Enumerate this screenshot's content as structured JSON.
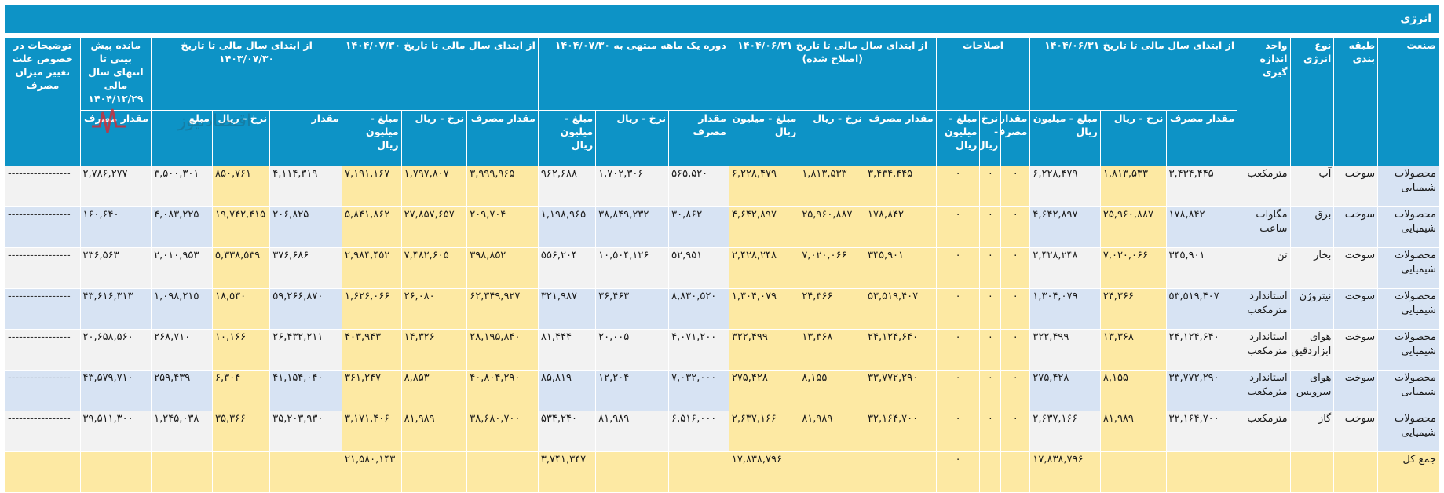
{
  "title": "انرژی",
  "header": {
    "industry": "صنعت",
    "category": "طبقه بندی",
    "energy_type": "نوع انرژی",
    "unit": "واحد اندازه گیری",
    "period1": "از ابتدای سال مالی تا تاریخ ۱۴۰۴/۰۶/۳۱",
    "corrections": "اصلاحات",
    "period2": "از ابتدای سال مالی تا تاریخ ۱۴۰۴/۰۶/۳۱ (اصلاح شده)",
    "period3": "دوره یک ماهه منتهی به ۱۴۰۴/۰۷/۳۰",
    "period4": "از ابتدای سال مالی تا تاریخ ۱۴۰۴/۰۷/۳۰",
    "period5": "از ابتدای سال مالی تا تاریخ ۱۴۰۳/۰۷/۳۰",
    "remaining": "مانده پیش بینی تا انتهای سال مالی ۱۴۰۴/۱۲/۲۹",
    "notes": "توضیحات در خصوص علت تغییر میزان مصرف",
    "sub_qty_cons": "مقدار مصرف",
    "sub_rate": "نرخ - ریال",
    "sub_amount": "مبلغ - میلیون ریال",
    "sub_corr_qty": "مقدار مصرف",
    "sub_corr_rate": "نرخ - ریال",
    "sub_corr_amount": "مبلغ - میلیون ریال",
    "sub_p3_qty": "مقدار مصرف",
    "sub_p5_qty": "مقدار",
    "sub_p5_amount": "مبلغ"
  },
  "rows": [
    {
      "industry": "محصولات شیمیایی",
      "category": "سوخت",
      "type": "آب",
      "unit": "مترمکعب",
      "p1": [
        "۳,۴۳۴,۴۴۵",
        "۱,۸۱۳,۵۳۳",
        "۶,۲۲۸,۴۷۹"
      ],
      "corr": [
        "۰",
        "۰",
        "۰"
      ],
      "p2": [
        "۳,۴۳۴,۴۴۵",
        "۱,۸۱۳,۵۳۳",
        "۶,۲۲۸,۴۷۹"
      ],
      "p3": [
        "۵۶۵,۵۲۰",
        "۱,۷۰۲,۳۰۶",
        "۹۶۲,۶۸۸"
      ],
      "p4": [
        "۳,۹۹۹,۹۶۵",
        "۱,۷۹۷,۸۰۷",
        "۷,۱۹۱,۱۶۷"
      ],
      "p5": [
        "۴,۱۱۴,۳۱۹",
        "۸۵۰,۷۶۱",
        "۳,۵۰۰,۳۰۱"
      ],
      "rem": "۲,۷۸۶,۲۷۷",
      "note": "-----------------"
    },
    {
      "industry": "محصولات شیمیایی",
      "category": "سوخت",
      "type": "برق",
      "unit": "مگاوات ساعت",
      "p1": [
        "۱۷۸,۸۴۲",
        "۲۵,۹۶۰,۸۸۷",
        "۴,۶۴۲,۸۹۷"
      ],
      "corr": [
        "۰",
        "۰",
        "۰"
      ],
      "p2": [
        "۱۷۸,۸۴۲",
        "۲۵,۹۶۰,۸۸۷",
        "۴,۶۴۲,۸۹۷"
      ],
      "p3": [
        "۳۰,۸۶۲",
        "۳۸,۸۴۹,۲۳۲",
        "۱,۱۹۸,۹۶۵"
      ],
      "p4": [
        "۲۰۹,۷۰۴",
        "۲۷,۸۵۷,۶۵۷",
        "۵,۸۴۱,۸۶۲"
      ],
      "p5": [
        "۲۰۶,۸۲۵",
        "۱۹,۷۴۲,۴۱۵",
        "۴,۰۸۳,۲۲۵"
      ],
      "rem": "۱۶۰,۶۴۰",
      "note": "-----------------"
    },
    {
      "industry": "محصولات شیمیایی",
      "category": "سوخت",
      "type": "بخار",
      "unit": "تن",
      "p1": [
        "۳۴۵,۹۰۱",
        "۷,۰۲۰,۰۶۶",
        "۲,۴۲۸,۲۴۸"
      ],
      "corr": [
        "۰",
        "۰",
        "۰"
      ],
      "p2": [
        "۳۴۵,۹۰۱",
        "۷,۰۲۰,۰۶۶",
        "۲,۴۲۸,۲۴۸"
      ],
      "p3": [
        "۵۲,۹۵۱",
        "۱۰,۵۰۴,۱۲۶",
        "۵۵۶,۲۰۴"
      ],
      "p4": [
        "۳۹۸,۸۵۲",
        "۷,۴۸۲,۶۰۵",
        "۲,۹۸۴,۴۵۲"
      ],
      "p5": [
        "۳۷۶,۶۸۶",
        "۵,۳۳۸,۵۳۹",
        "۲,۰۱۰,۹۵۳"
      ],
      "rem": "۲۳۶,۵۶۳",
      "note": "-----------------"
    },
    {
      "industry": "محصولات شیمیایی",
      "category": "سوخت",
      "type": "نیتروژن",
      "unit": "استاندارد مترمکعب",
      "p1": [
        "۵۳,۵۱۹,۴۰۷",
        "۲۴,۳۶۶",
        "۱,۳۰۴,۰۷۹"
      ],
      "corr": [
        "۰",
        "۰",
        "۰"
      ],
      "p2": [
        "۵۳,۵۱۹,۴۰۷",
        "۲۴,۳۶۶",
        "۱,۳۰۴,۰۷۹"
      ],
      "p3": [
        "۸,۸۳۰,۵۲۰",
        "۳۶,۴۶۳",
        "۳۲۱,۹۸۷"
      ],
      "p4": [
        "۶۲,۳۴۹,۹۲۷",
        "۲۶,۰۸۰",
        "۱,۶۲۶,۰۶۶"
      ],
      "p5": [
        "۵۹,۲۶۶,۸۷۰",
        "۱۸,۵۳۰",
        "۱,۰۹۸,۲۱۵"
      ],
      "rem": "۴۳,۶۱۶,۳۱۳",
      "note": "-----------------"
    },
    {
      "industry": "محصولات شیمیایی",
      "category": "سوخت",
      "type": "هوای ابزاردقیق",
      "unit": "استاندارد مترمکعب",
      "p1": [
        "۲۴,۱۲۴,۶۴۰",
        "۱۳,۳۶۸",
        "۳۲۲,۴۹۹"
      ],
      "corr": [
        "۰",
        "۰",
        "۰"
      ],
      "p2": [
        "۲۴,۱۲۴,۶۴۰",
        "۱۳,۳۶۸",
        "۳۲۲,۴۹۹"
      ],
      "p3": [
        "۴,۰۷۱,۲۰۰",
        "۲۰,۰۰۵",
        "۸۱,۴۴۴"
      ],
      "p4": [
        "۲۸,۱۹۵,۸۴۰",
        "۱۴,۳۲۶",
        "۴۰۳,۹۴۳"
      ],
      "p5": [
        "۲۶,۴۳۲,۲۱۱",
        "۱۰,۱۶۶",
        "۲۶۸,۷۱۰"
      ],
      "rem": "۲۰,۶۵۸,۵۶۰",
      "note": "-----------------"
    },
    {
      "industry": "محصولات شیمیایی",
      "category": "سوخت",
      "type": "هوای سرویس",
      "unit": "استاندارد مترمکعب",
      "p1": [
        "۳۳,۷۷۲,۲۹۰",
        "۸,۱۵۵",
        "۲۷۵,۴۲۸"
      ],
      "corr": [
        "۰",
        "۰",
        "۰"
      ],
      "p2": [
        "۳۳,۷۷۲,۲۹۰",
        "۸,۱۵۵",
        "۲۷۵,۴۲۸"
      ],
      "p3": [
        "۷,۰۳۲,۰۰۰",
        "۱۲,۲۰۴",
        "۸۵,۸۱۹"
      ],
      "p4": [
        "۴۰,۸۰۴,۲۹۰",
        "۸,۸۵۳",
        "۳۶۱,۲۴۷"
      ],
      "p5": [
        "۴۱,۱۵۴,۰۴۰",
        "۶,۳۰۴",
        "۲۵۹,۴۳۹"
      ],
      "rem": "۴۳,۵۷۹,۷۱۰",
      "note": "-----------------"
    },
    {
      "industry": "محصولات شیمیایی",
      "category": "سوخت",
      "type": "گاز",
      "unit": "مترمکعب",
      "p1": [
        "۳۲,۱۶۴,۷۰۰",
        "۸۱,۹۸۹",
        "۲,۶۳۷,۱۶۶"
      ],
      "corr": [
        "۰",
        "۰",
        "۰"
      ],
      "p2": [
        "۳۲,۱۶۴,۷۰۰",
        "۸۱,۹۸۹",
        "۲,۶۳۷,۱۶۶"
      ],
      "p3": [
        "۶,۵۱۶,۰۰۰",
        "۸۱,۹۸۹",
        "۵۳۴,۲۴۰"
      ],
      "p4": [
        "۳۸,۶۸۰,۷۰۰",
        "۸۱,۹۸۹",
        "۳,۱۷۱,۴۰۶"
      ],
      "p5": [
        "۳۵,۲۰۳,۹۳۰",
        "۳۵,۳۶۶",
        "۱,۲۴۵,۰۳۸"
      ],
      "rem": "۳۹,۵۱۱,۳۰۰",
      "note": "-----------------"
    }
  ],
  "total": {
    "label": "جمع کل",
    "p1_amount": "۱۷,۸۳۸,۷۹۶",
    "corr_amount": "۰",
    "p2_amount": "۱۷,۸۳۸,۷۹۶",
    "p3_amount": "۳,۷۴۱,۳۴۷",
    "p4_amount": "۲۱,۵۸۰,۱۴۳"
  },
  "watermark": "اقتصادنیوز",
  "colors": {
    "header": "#0d93c6",
    "yellow": "#fde9a3",
    "blue": "#d7e3f3",
    "grey": "#f2f2f2"
  }
}
